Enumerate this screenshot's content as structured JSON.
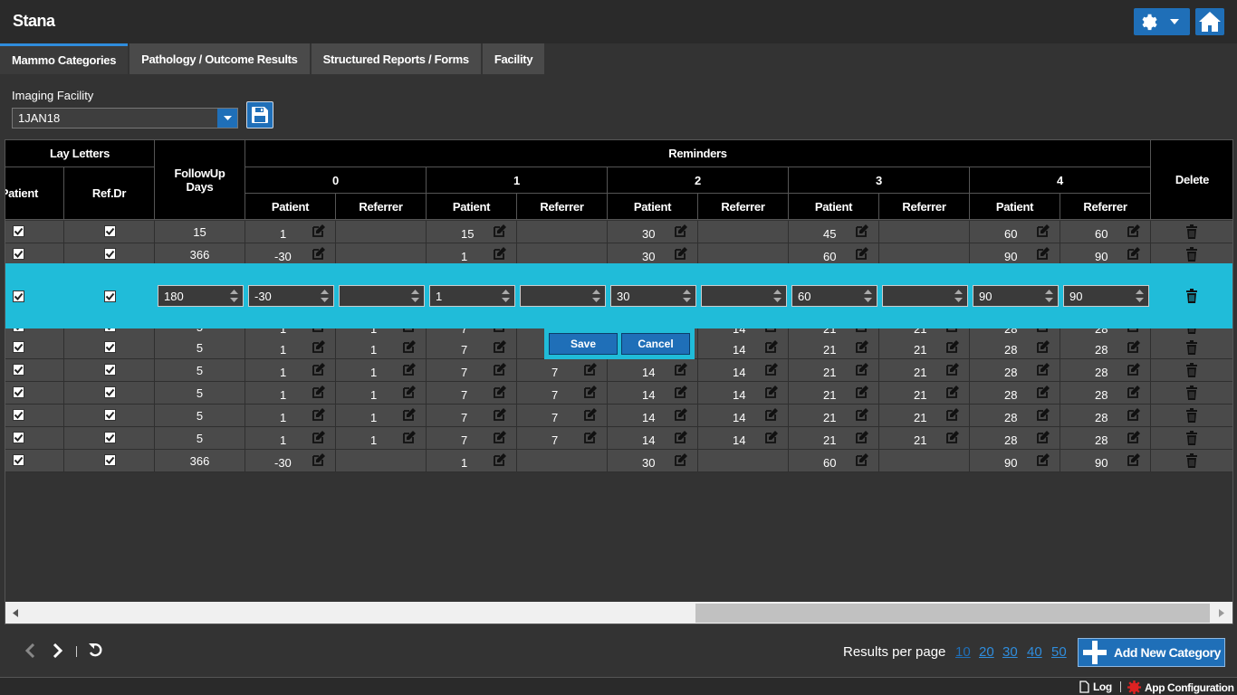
{
  "app": {
    "title": "Stana"
  },
  "tabs": [
    "Mammo Categories",
    "Pathology / Outcome Results",
    "Structured Reports / Forms",
    "Facility"
  ],
  "facility": {
    "label": "Imaging Facility",
    "selected": "1JAN18"
  },
  "headers": {
    "lay_letters": "Lay Letters",
    "patient_cut": "Patient",
    "refdr": "Ref.Dr",
    "followup": "FollowUp Days",
    "reminders": "Reminders",
    "groups": [
      "0",
      "1",
      "2",
      "3",
      "4"
    ],
    "patient": "Patient",
    "referrer": "Referrer",
    "delete": "Delete"
  },
  "rows_top": [
    {
      "followup": "15",
      "r": [
        "1",
        "",
        "15",
        "",
        "30",
        "",
        "45",
        "",
        "60",
        "60"
      ]
    },
    {
      "followup": "366",
      "r": [
        "-30",
        "",
        "1",
        "",
        "30",
        "",
        "60",
        "",
        "90",
        "90"
      ]
    }
  ],
  "edit_row": {
    "values": [
      "180",
      "-30",
      "",
      "1",
      "",
      "30",
      "",
      "60",
      "",
      "90",
      "90"
    ],
    "save": "Save",
    "cancel": "Cancel"
  },
  "rows_bottom": [
    {
      "followup": "5",
      "r": [
        "1",
        "1",
        "7",
        "7",
        "14",
        "14",
        "21",
        "21",
        "28",
        "28"
      ]
    },
    {
      "followup": "5",
      "r": [
        "1",
        "1",
        "7",
        "7",
        "14",
        "14",
        "21",
        "21",
        "28",
        "28"
      ]
    },
    {
      "followup": "5",
      "r": [
        "1",
        "1",
        "7",
        "7",
        "14",
        "14",
        "21",
        "21",
        "28",
        "28"
      ]
    },
    {
      "followup": "5",
      "r": [
        "1",
        "1",
        "7",
        "7",
        "14",
        "14",
        "21",
        "21",
        "28",
        "28"
      ]
    },
    {
      "followup": "5",
      "r": [
        "1",
        "1",
        "7",
        "7",
        "14",
        "14",
        "21",
        "21",
        "28",
        "28"
      ]
    },
    {
      "followup": "366",
      "r": [
        "-30",
        "",
        "1",
        "",
        "30",
        "",
        "60",
        "",
        "90",
        "90"
      ]
    }
  ],
  "pager": {
    "results_label": "Results per page",
    "options": [
      "10",
      "20",
      "30",
      "40",
      "50"
    ],
    "add_label": "Add New Category"
  },
  "footer": {
    "log": "Log",
    "config": "App Configuration"
  },
  "colors": {
    "accent": "#1f6fb8",
    "edit_row": "#20bcd9",
    "header": "#000000"
  }
}
